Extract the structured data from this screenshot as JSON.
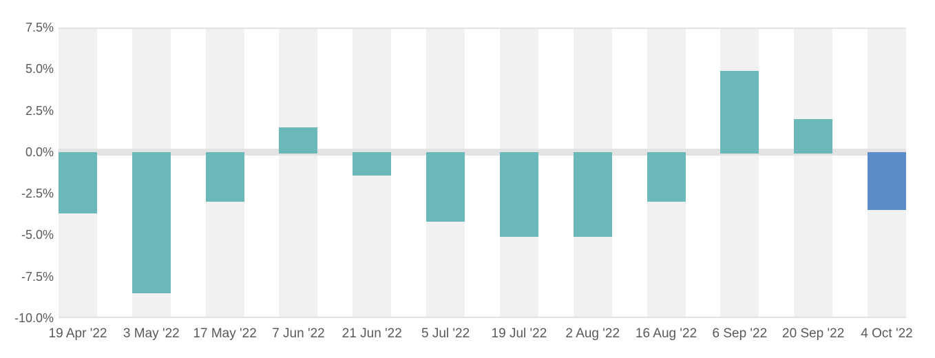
{
  "chart_data": {
    "type": "bar",
    "title": "",
    "legend": "none",
    "x_type": "category",
    "categories": [
      "19 Apr '22",
      "3 May '22",
      "17 May '22",
      "7 Jun '22",
      "21 Jun '22",
      "5 Jul '22",
      "19 Jul '22",
      "2 Aug '22",
      "16 Aug '22",
      "6 Sep '22",
      "20 Sep '22",
      "4 Oct '22"
    ],
    "values": [
      -3.7,
      -8.5,
      -3.0,
      1.5,
      -1.4,
      -4.2,
      -5.1,
      -5.1,
      -3.0,
      4.9,
      2.0,
      -3.5
    ],
    "value_unit": "%",
    "ylim": [
      -10.0,
      7.5
    ],
    "y_tick_values": [
      7.5,
      5.0,
      2.5,
      0.0,
      -2.5,
      -5.0,
      -7.5,
      -10.0
    ],
    "y_tick_labels": [
      "7.5%",
      "5.0%",
      "2.5%",
      "0.0%",
      "-2.5%",
      "-5.0%",
      "-7.5%",
      "-10.0%"
    ],
    "highlight_index": 11,
    "layout_hints": {
      "gridlines": "horizontal lines at top (7.5%) and bottom (-10%) only",
      "zero_line": "thick light-gray band at 0%",
      "background": "alternating vertical stripes, one per category"
    },
    "colors": {
      "bar_default": "#6bb8ba",
      "bar_highlight": "#5d8cca",
      "stripe": "#f1f1f1",
      "zero_band": "#e3e3e3",
      "gridline": "#e2e2e2",
      "axis_text": "#595959",
      "background": "#ffffff"
    }
  }
}
